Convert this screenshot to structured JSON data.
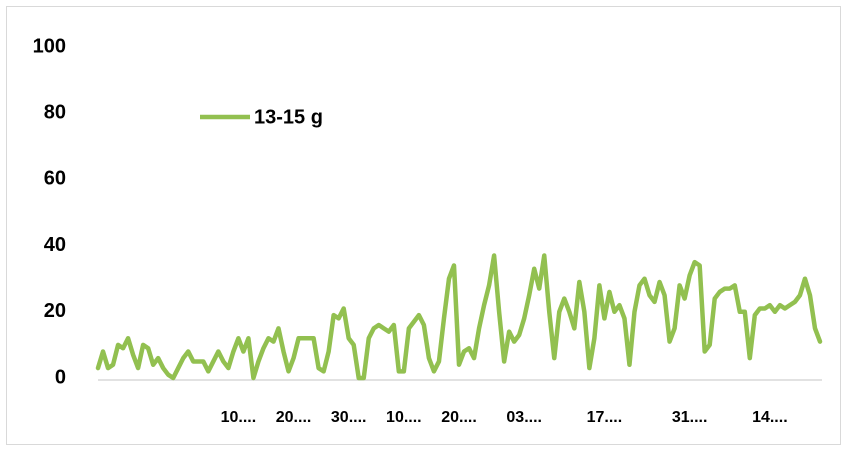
{
  "chart_data": {
    "type": "line",
    "categories": [
      null,
      null,
      null,
      null,
      null,
      null,
      null,
      null,
      null,
      null,
      null,
      null,
      null,
      null,
      null,
      null,
      null,
      null,
      null,
      null,
      null,
      null,
      null,
      null,
      null,
      null,
      null,
      null,
      "10....",
      null,
      null,
      null,
      null,
      null,
      null,
      null,
      null,
      null,
      null,
      "20....",
      null,
      null,
      null,
      null,
      null,
      null,
      null,
      null,
      null,
      null,
      "30....",
      null,
      null,
      null,
      null,
      null,
      null,
      null,
      null,
      null,
      null,
      "10....",
      null,
      null,
      null,
      null,
      null,
      null,
      null,
      null,
      null,
      null,
      "20....",
      null,
      null,
      null,
      null,
      null,
      null,
      null,
      null,
      null,
      null,
      null,
      null,
      "03....",
      null,
      null,
      null,
      null,
      null,
      null,
      null,
      null,
      null,
      null,
      null,
      null,
      null,
      null,
      null,
      "17....",
      null,
      null,
      null,
      null,
      null,
      null,
      null,
      null,
      null,
      null,
      null,
      null,
      null,
      null,
      null,
      null,
      "31....",
      null,
      null,
      null,
      null,
      null,
      null,
      null,
      null,
      null,
      null,
      null,
      null,
      null,
      null,
      null,
      "14....",
      null,
      null,
      null,
      null,
      null,
      null,
      null,
      null,
      null,
      null
    ],
    "series": [
      {
        "name": "13-15 g",
        "color": "#92c050",
        "values": [
          3,
          8,
          3,
          4,
          10,
          9,
          12,
          7,
          3,
          10,
          9,
          4,
          6,
          3,
          1,
          0,
          3,
          6,
          8,
          5,
          5,
          5,
          2,
          5,
          8,
          5,
          3,
          8,
          12,
          8,
          12,
          0,
          5,
          9,
          12,
          11,
          15,
          8,
          2,
          6,
          12,
          12,
          12,
          12,
          3,
          2,
          8,
          19,
          18,
          21,
          12,
          10,
          0,
          0,
          12,
          15,
          16,
          15,
          14,
          16,
          2,
          2,
          15,
          17,
          19,
          16,
          6,
          2,
          5,
          18,
          30,
          34,
          4,
          8,
          9,
          6,
          15,
          22,
          28,
          37,
          20,
          5,
          14,
          11,
          13,
          18,
          25,
          33,
          27,
          37,
          20,
          6,
          20,
          24,
          20,
          15,
          29,
          20,
          3,
          12,
          28,
          18,
          26,
          20,
          22,
          18,
          4,
          20,
          28,
          30,
          25,
          23,
          29,
          25,
          11,
          15,
          28,
          24,
          31,
          35,
          34,
          8,
          10,
          24,
          26,
          27,
          27,
          28,
          20,
          20,
          6,
          19,
          21,
          21,
          22,
          20,
          22,
          21,
          22,
          23,
          25,
          30,
          25,
          15,
          11
        ]
      }
    ],
    "ylim": [
      0,
      100
    ],
    "yticks": [
      0,
      20,
      40,
      60,
      80,
      100
    ],
    "grid": false,
    "legend": "top-left"
  }
}
